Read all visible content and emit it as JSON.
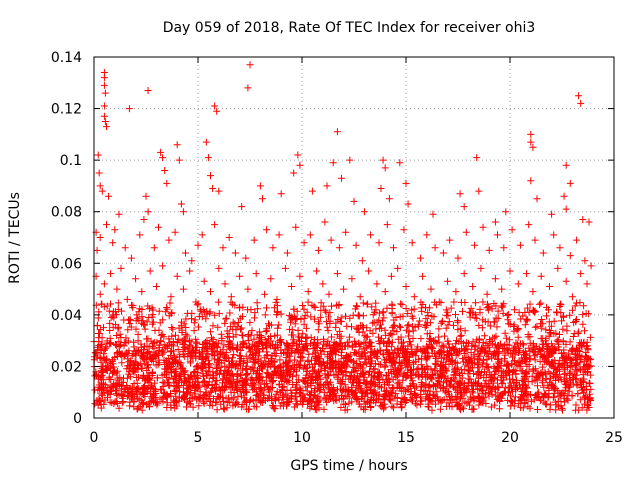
{
  "chart_data": {
    "type": "scatter",
    "title": "Day 059 of 2018, Rate Of TEC Index for receiver ohi3",
    "xlabel": "GPS time / hours",
    "ylabel": "ROTI / TECUs",
    "xlim": [
      0,
      25
    ],
    "ylim": [
      0,
      0.14
    ],
    "x_ticks": [
      0,
      5,
      10,
      15,
      20,
      25
    ],
    "y_ticks": [
      0,
      0.02,
      0.04,
      0.06,
      0.08,
      0.1,
      0.12,
      0.14
    ],
    "x_tick_labels": [
      "0",
      "5",
      "10",
      "15",
      "20",
      "25"
    ],
    "y_tick_labels": [
      "0",
      "0.02",
      "0.04",
      "0.06",
      "0.08",
      "0.1",
      "0.12",
      "0.14"
    ],
    "grid": true,
    "marker": "+",
    "color": "#ff0000",
    "series": [
      {
        "name": "ROTI",
        "points": [
          [
            0.5,
            0.134
          ],
          [
            0.5,
            0.132
          ],
          [
            0.5,
            0.129
          ],
          [
            0.55,
            0.126
          ],
          [
            0.5,
            0.121
          ],
          [
            0.5,
            0.117
          ],
          [
            0.55,
            0.115
          ],
          [
            0.6,
            0.113
          ],
          [
            1.7,
            0.12
          ],
          [
            2.6,
            0.127
          ],
          [
            7.5,
            0.137
          ],
          [
            7.4,
            0.128
          ],
          [
            5.8,
            0.121
          ],
          [
            5.9,
            0.119
          ],
          [
            11.7,
            0.111
          ],
          [
            23.3,
            0.125
          ],
          [
            23.4,
            0.122
          ],
          [
            21.0,
            0.11
          ],
          [
            21.0,
            0.107
          ],
          [
            21.1,
            0.105
          ],
          [
            0.2,
            0.102
          ],
          [
            0.25,
            0.095
          ],
          [
            0.3,
            0.09
          ],
          [
            3.2,
            0.103
          ],
          [
            3.3,
            0.101
          ],
          [
            4.0,
            0.106
          ],
          [
            4.1,
            0.1
          ],
          [
            5.4,
            0.107
          ],
          [
            5.5,
            0.101
          ],
          [
            9.8,
            0.102
          ],
          [
            9.9,
            0.098
          ],
          [
            11.5,
            0.099
          ],
          [
            12.3,
            0.1
          ],
          [
            13.9,
            0.1
          ],
          [
            14.0,
            0.097
          ],
          [
            14.7,
            0.099
          ],
          [
            18.4,
            0.101
          ],
          [
            22.7,
            0.098
          ],
          [
            22.9,
            0.091
          ],
          [
            21.0,
            0.092
          ],
          [
            0.4,
            0.088
          ],
          [
            0.7,
            0.086
          ],
          [
            1.2,
            0.079
          ],
          [
            2.5,
            0.086
          ],
          [
            2.6,
            0.08
          ],
          [
            3.4,
            0.096
          ],
          [
            3.5,
            0.091
          ],
          [
            4.2,
            0.083
          ],
          [
            4.3,
            0.08
          ],
          [
            5.6,
            0.094
          ],
          [
            5.7,
            0.089
          ],
          [
            6.0,
            0.088
          ],
          [
            7.1,
            0.082
          ],
          [
            8.0,
            0.09
          ],
          [
            8.1,
            0.085
          ],
          [
            9.0,
            0.087
          ],
          [
            9.6,
            0.095
          ],
          [
            10.5,
            0.088
          ],
          [
            11.2,
            0.09
          ],
          [
            11.9,
            0.093
          ],
          [
            12.5,
            0.084
          ],
          [
            13.0,
            0.08
          ],
          [
            13.8,
            0.089
          ],
          [
            14.2,
            0.085
          ],
          [
            15.0,
            0.091
          ],
          [
            15.1,
            0.083
          ],
          [
            16.3,
            0.079
          ],
          [
            17.6,
            0.087
          ],
          [
            17.8,
            0.082
          ],
          [
            18.5,
            0.088
          ],
          [
            19.3,
            0.076
          ],
          [
            19.8,
            0.08
          ],
          [
            21.3,
            0.085
          ],
          [
            22.0,
            0.079
          ],
          [
            22.6,
            0.086
          ],
          [
            22.7,
            0.081
          ],
          [
            23.5,
            0.077
          ],
          [
            23.8,
            0.076
          ],
          [
            0.1,
            0.072
          ],
          [
            0.15,
            0.065
          ],
          [
            0.3,
            0.07
          ],
          [
            0.6,
            0.075
          ],
          [
            0.9,
            0.068
          ],
          [
            1.0,
            0.073
          ],
          [
            1.5,
            0.066
          ],
          [
            1.8,
            0.062
          ],
          [
            2.2,
            0.071
          ],
          [
            2.4,
            0.077
          ],
          [
            2.9,
            0.066
          ],
          [
            3.1,
            0.074
          ],
          [
            3.6,
            0.069
          ],
          [
            3.9,
            0.072
          ],
          [
            4.4,
            0.064
          ],
          [
            4.7,
            0.061
          ],
          [
            5.0,
            0.067
          ],
          [
            5.2,
            0.071
          ],
          [
            5.8,
            0.075
          ],
          [
            6.2,
            0.066
          ],
          [
            6.5,
            0.07
          ],
          [
            6.8,
            0.064
          ],
          [
            7.3,
            0.062
          ],
          [
            7.7,
            0.069
          ],
          [
            8.3,
            0.073
          ],
          [
            8.6,
            0.066
          ],
          [
            8.9,
            0.071
          ],
          [
            9.3,
            0.064
          ],
          [
            9.7,
            0.074
          ],
          [
            10.1,
            0.068
          ],
          [
            10.4,
            0.071
          ],
          [
            10.8,
            0.065
          ],
          [
            11.1,
            0.076
          ],
          [
            11.4,
            0.069
          ],
          [
            11.8,
            0.066
          ],
          [
            12.1,
            0.072
          ],
          [
            12.6,
            0.067
          ],
          [
            12.9,
            0.061
          ],
          [
            13.3,
            0.071
          ],
          [
            13.7,
            0.068
          ],
          [
            14.1,
            0.075
          ],
          [
            14.4,
            0.066
          ],
          [
            14.9,
            0.073
          ],
          [
            15.3,
            0.068
          ],
          [
            15.7,
            0.062
          ],
          [
            16.0,
            0.071
          ],
          [
            16.4,
            0.066
          ],
          [
            16.8,
            0.064
          ],
          [
            17.1,
            0.069
          ],
          [
            17.5,
            0.062
          ],
          [
            17.9,
            0.072
          ],
          [
            18.3,
            0.067
          ],
          [
            18.7,
            0.074
          ],
          [
            19.0,
            0.065
          ],
          [
            19.4,
            0.071
          ],
          [
            19.7,
            0.066
          ],
          [
            20.1,
            0.073
          ],
          [
            20.5,
            0.067
          ],
          [
            20.9,
            0.075
          ],
          [
            21.2,
            0.069
          ],
          [
            21.6,
            0.064
          ],
          [
            22.1,
            0.071
          ],
          [
            22.4,
            0.066
          ],
          [
            22.9,
            0.063
          ],
          [
            23.2,
            0.069
          ],
          [
            23.6,
            0.061
          ],
          [
            23.9,
            0.059
          ],
          [
            0.1,
            0.055
          ],
          [
            0.3,
            0.048
          ],
          [
            0.5,
            0.052
          ],
          [
            0.8,
            0.056
          ],
          [
            1.1,
            0.05
          ],
          [
            1.3,
            0.058
          ],
          [
            1.6,
            0.046
          ],
          [
            2.0,
            0.054
          ],
          [
            2.3,
            0.049
          ],
          [
            2.7,
            0.057
          ],
          [
            3.0,
            0.051
          ],
          [
            3.3,
            0.059
          ],
          [
            3.7,
            0.047
          ],
          [
            4.0,
            0.055
          ],
          [
            4.3,
            0.05
          ],
          [
            4.6,
            0.057
          ],
          [
            4.9,
            0.045
          ],
          [
            5.3,
            0.053
          ],
          [
            5.6,
            0.049
          ],
          [
            6.0,
            0.058
          ],
          [
            6.3,
            0.052
          ],
          [
            6.6,
            0.047
          ],
          [
            7.0,
            0.055
          ],
          [
            7.4,
            0.05
          ],
          [
            7.8,
            0.056
          ],
          [
            8.2,
            0.048
          ],
          [
            8.5,
            0.054
          ],
          [
            8.8,
            0.046
          ],
          [
            9.2,
            0.058
          ],
          [
            9.5,
            0.051
          ],
          [
            9.9,
            0.055
          ],
          [
            10.3,
            0.049
          ],
          [
            10.7,
            0.057
          ],
          [
            11.0,
            0.052
          ],
          [
            11.3,
            0.048
          ],
          [
            11.7,
            0.056
          ],
          [
            12.0,
            0.05
          ],
          [
            12.4,
            0.054
          ],
          [
            12.8,
            0.047
          ],
          [
            13.2,
            0.057
          ],
          [
            13.6,
            0.052
          ],
          [
            14.0,
            0.049
          ],
          [
            14.3,
            0.055
          ],
          [
            14.6,
            0.058
          ],
          [
            15.0,
            0.051
          ],
          [
            15.4,
            0.047
          ],
          [
            15.8,
            0.055
          ],
          [
            16.2,
            0.05
          ],
          [
            16.6,
            0.045
          ],
          [
            17.0,
            0.053
          ],
          [
            17.4,
            0.049
          ],
          [
            17.8,
            0.056
          ],
          [
            18.2,
            0.051
          ],
          [
            18.6,
            0.058
          ],
          [
            18.9,
            0.048
          ],
          [
            19.3,
            0.054
          ],
          [
            19.6,
            0.05
          ],
          [
            20.0,
            0.057
          ],
          [
            20.4,
            0.052
          ],
          [
            20.8,
            0.056
          ],
          [
            21.1,
            0.049
          ],
          [
            21.5,
            0.055
          ],
          [
            21.9,
            0.051
          ],
          [
            22.3,
            0.058
          ],
          [
            22.7,
            0.053
          ],
          [
            23.0,
            0.047
          ],
          [
            23.4,
            0.056
          ],
          [
            23.7,
            0.052
          ]
        ]
      }
    ],
    "dense_band": {
      "description": "dense cluster of points between roughly 0.003 and 0.04 for all hours 0 to 23.9",
      "y_min": 0.003,
      "y_core_min": 0.006,
      "y_core_max": 0.03,
      "y_max": 0.045,
      "x_start": 0.0,
      "x_end": 23.9
    }
  }
}
